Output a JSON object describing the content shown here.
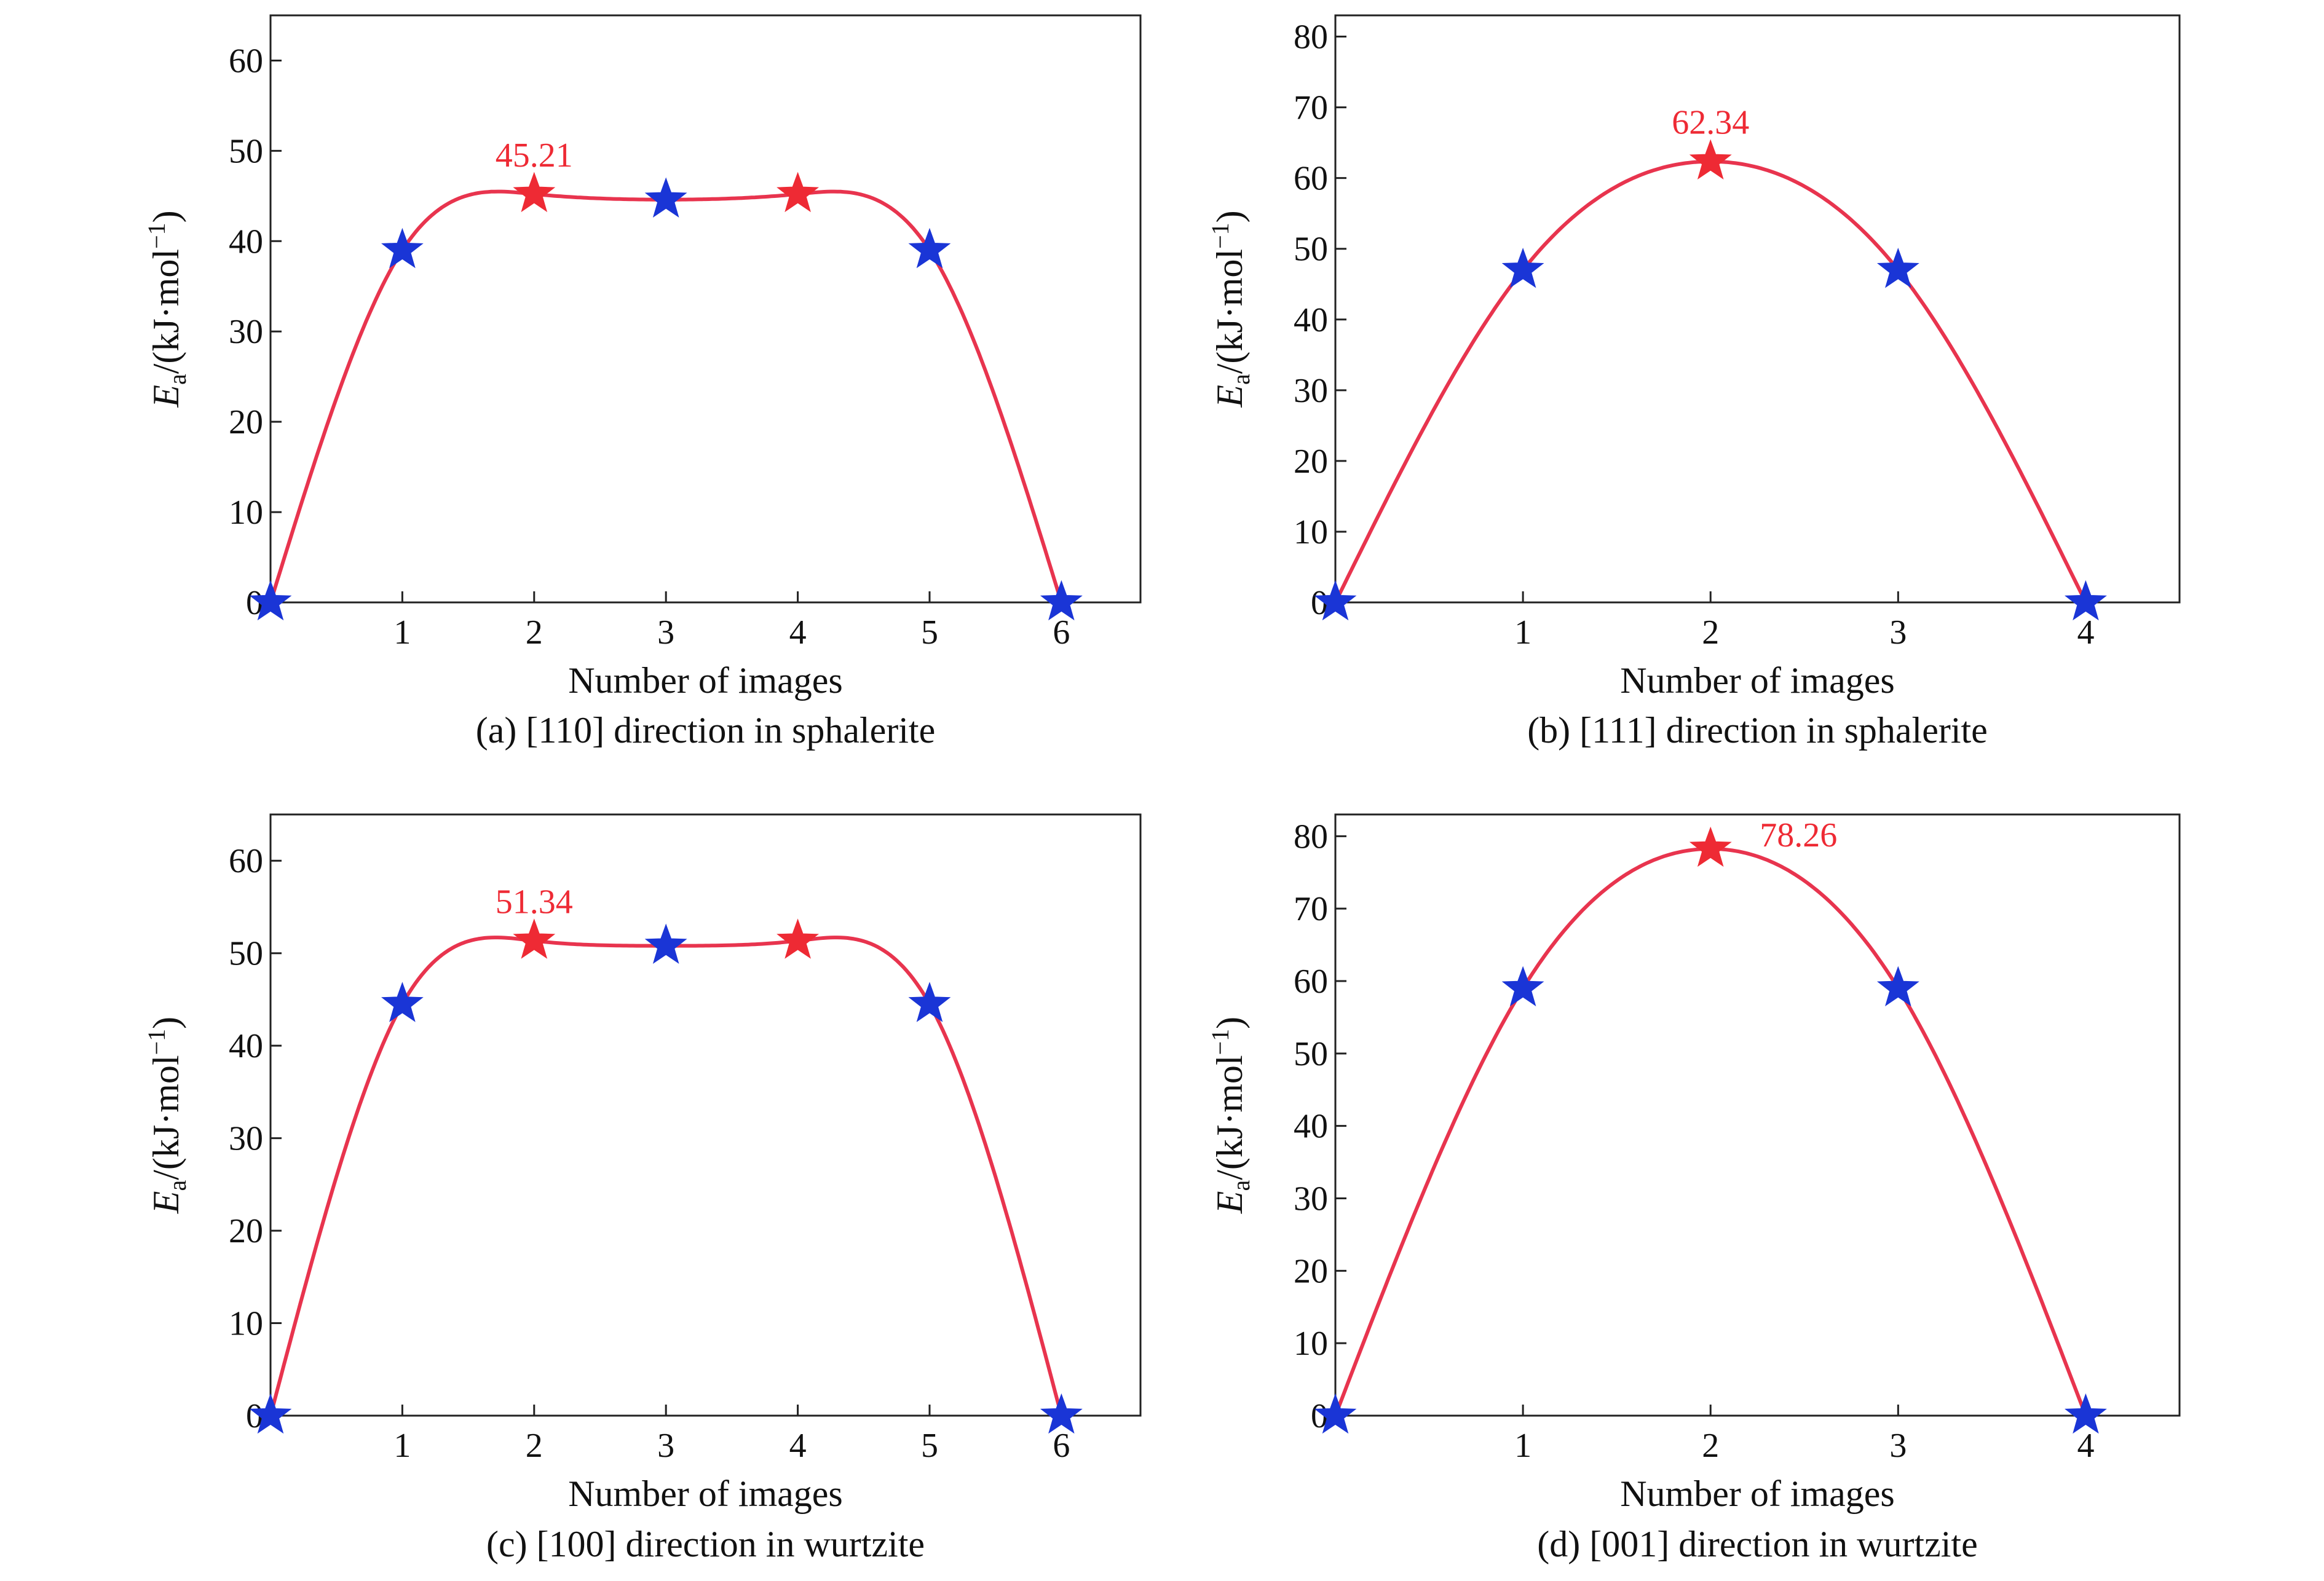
{
  "colors": {
    "curve": "#e8344e",
    "peak_marker": "#ee2a34",
    "marker": "#1a35d6",
    "peak_label": "#ee2a34",
    "axis": "#222222"
  },
  "marker_shape": "star",
  "chart_data": [
    {
      "type": "line",
      "caption": "(a) [110] direction in sphalerite",
      "xlabel": "Number of images",
      "ylabel": {
        "italic": "E",
        "sub": "a",
        "rest": "/(kJ·mol",
        "sup": "−1",
        "close": ")"
      },
      "xlim": [
        0,
        6.6
      ],
      "ylim": [
        0,
        65
      ],
      "xticks": [
        1,
        2,
        3,
        4,
        5,
        6
      ],
      "yticks": [
        0,
        10,
        20,
        30,
        40,
        50,
        60
      ],
      "x": [
        0,
        1,
        2,
        3,
        4,
        5,
        6
      ],
      "y": [
        0,
        39,
        45.21,
        44.6,
        45.21,
        39,
        0
      ],
      "peak_indices": [
        2,
        4
      ],
      "peak_label": "45.21",
      "peak_label_index": 2,
      "peak_label_position": "above",
      "grid": false
    },
    {
      "type": "line",
      "caption": "(b) [111] direction in sphalerite",
      "xlabel": "Number of images",
      "ylabel": {
        "italic": "E",
        "sub": "a",
        "rest": "/(kJ·mol",
        "sup": "−1",
        "close": ")"
      },
      "xlim": [
        0,
        4.5
      ],
      "ylim": [
        0,
        83
      ],
      "xticks": [
        1,
        2,
        3,
        4
      ],
      "yticks": [
        0,
        10,
        20,
        30,
        40,
        50,
        60,
        70,
        80
      ],
      "x": [
        0,
        1,
        2,
        3,
        4
      ],
      "y": [
        0,
        47,
        62.34,
        47,
        0
      ],
      "peak_indices": [
        2
      ],
      "peak_label": "62.34",
      "peak_label_index": 2,
      "peak_label_position": "above",
      "grid": false
    },
    {
      "type": "line",
      "caption": "(c) [100] direction in wurtzite",
      "xlabel": "Number of images",
      "ylabel": {
        "italic": "E",
        "sub": "a",
        "rest": "/(kJ·mol",
        "sup": "−1",
        "close": ")"
      },
      "xlim": [
        0,
        6.6
      ],
      "ylim": [
        0,
        65
      ],
      "xticks": [
        1,
        2,
        3,
        4,
        5,
        6
      ],
      "yticks": [
        0,
        10,
        20,
        30,
        40,
        50,
        60
      ],
      "x": [
        0,
        1,
        2,
        3,
        4,
        5,
        6
      ],
      "y": [
        0,
        44.5,
        51.34,
        50.8,
        51.34,
        44.5,
        0
      ],
      "peak_indices": [
        2,
        4
      ],
      "peak_label": "51.34",
      "peak_label_index": 2,
      "peak_label_position": "above",
      "grid": false
    },
    {
      "type": "line",
      "caption": "(d) [001] direction in wurtzite",
      "xlabel": "Number of images",
      "ylabel": {
        "italic": "E",
        "sub": "a",
        "rest": "/(kJ·mol",
        "sup": "−1",
        "close": ")"
      },
      "xlim": [
        0,
        4.5
      ],
      "ylim": [
        0,
        83
      ],
      "xticks": [
        1,
        2,
        3,
        4
      ],
      "yticks": [
        0,
        10,
        20,
        30,
        40,
        50,
        60,
        70,
        80
      ],
      "x": [
        0,
        1,
        2,
        3,
        4
      ],
      "y": [
        0,
        59,
        78.26,
        59,
        0
      ],
      "peak_indices": [
        2
      ],
      "peak_label": "78.26",
      "peak_label_index": 2,
      "peak_label_position": "right",
      "grid": false
    }
  ]
}
